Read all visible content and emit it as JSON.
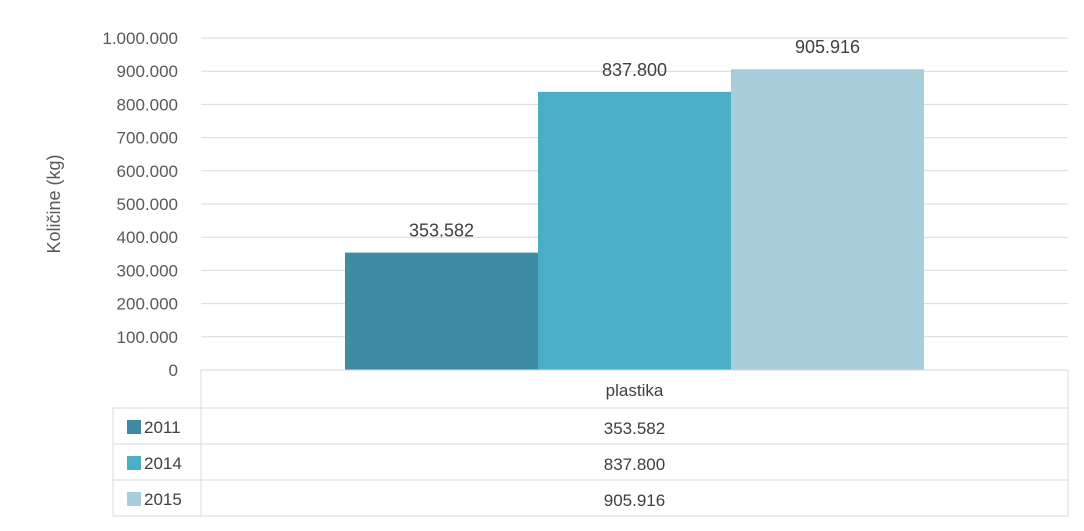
{
  "chart_data": {
    "type": "bar",
    "title": "",
    "categories": [
      "plastika"
    ],
    "series": [
      {
        "name": "2011",
        "values": [
          353582
        ],
        "color": "#3d8ca1",
        "value_label": "353.582"
      },
      {
        "name": "2014",
        "values": [
          837800
        ],
        "color": "#4aaec6",
        "value_label": "837.800"
      },
      {
        "name": "2015",
        "values": [
          905916
        ],
        "color": "#a8cedb",
        "value_label": "905.916"
      }
    ],
    "xlabel": "",
    "ylabel": "Količine (kg)",
    "ylim": [
      0,
      1000000
    ],
    "yticks": [
      {
        "value": 0,
        "label": "0"
      },
      {
        "value": 100000,
        "label": "100.000"
      },
      {
        "value": 200000,
        "label": "200.000"
      },
      {
        "value": 300000,
        "label": "300.000"
      },
      {
        "value": 400000,
        "label": "400.000"
      },
      {
        "value": 500000,
        "label": "500.000"
      },
      {
        "value": 600000,
        "label": "600.000"
      },
      {
        "value": 700000,
        "label": "700.000"
      },
      {
        "value": 800000,
        "label": "800.000"
      },
      {
        "value": 900000,
        "label": "900.000"
      },
      {
        "value": 1000000,
        "label": "1.000.000"
      }
    ],
    "grid": true,
    "legend": "data-table",
    "data_table": true
  }
}
